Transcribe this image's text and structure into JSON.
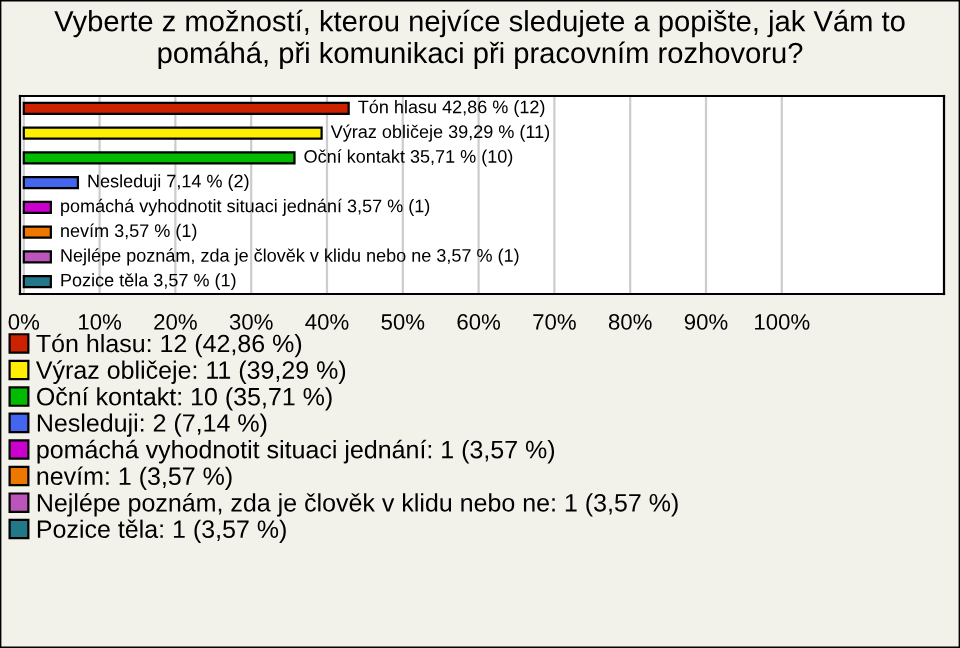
{
  "chart_data": {
    "type": "bar",
    "orientation": "horizontal",
    "title": "Vyberte z možností, kterou nejvíce sledujete a popište, jak Vám to pomáhá, při komunikaci při pracovním rozhovoru?",
    "categories": [
      null,
      null,
      null,
      null,
      null,
      null,
      null,
      null
    ],
    "series": [
      {
        "name": "Tón hlasu: 12 (42,86 %)",
        "color": "#cc2200",
        "values": [
          42.86,
          null,
          null,
          null,
          null,
          null,
          null,
          null
        ],
        "value_labels": [
          "Tón hlasu 42,86 % (12)",
          null,
          null,
          null,
          null,
          null,
          null,
          null
        ]
      },
      {
        "name": "Výraz obličeje: 11 (39,29 %)",
        "color": "#ffee00",
        "values": [
          null,
          39.29,
          null,
          null,
          null,
          null,
          null,
          null
        ],
        "value_labels": [
          null,
          "Výraz obličeje 39,29 % (11)",
          null,
          null,
          null,
          null,
          null,
          null
        ]
      },
      {
        "name": "Oční kontakt: 10 (35,71 %)",
        "color": "#00bb00",
        "values": [
          null,
          null,
          35.71,
          null,
          null,
          null,
          null,
          null
        ],
        "value_labels": [
          null,
          null,
          "Oční kontakt 35,71 % (10)",
          null,
          null,
          null,
          null,
          null
        ]
      },
      {
        "name": "Nesleduji: 2 (7,14 %)",
        "color": "#4466ee",
        "values": [
          null,
          null,
          null,
          7.14,
          null,
          null,
          null,
          null
        ],
        "value_labels": [
          null,
          null,
          null,
          "Nesleduji 7,14 % (2)",
          null,
          null,
          null,
          null
        ]
      },
      {
        "name": "pomáchá vyhodnotit situaci jednání: 1 (3,57 %)",
        "color": "#cc00cc",
        "values": [
          null,
          null,
          null,
          null,
          3.57,
          null,
          null,
          null
        ],
        "value_labels": [
          null,
          null,
          null,
          null,
          "pomáchá vyhodnotit situaci jednání 3,57 % (1)",
          null,
          null,
          null
        ]
      },
      {
        "name": "nevím: 1 (3,57 %)",
        "color": "#ee7700",
        "values": [
          null,
          null,
          null,
          null,
          null,
          3.57,
          null,
          null
        ],
        "value_labels": [
          null,
          null,
          null,
          null,
          null,
          "nevím 3,57 % (1)",
          null,
          null
        ]
      },
      {
        "name": "Nejlépe poznám, zda je člověk v klidu nebo ne: 1 (3,57 %)",
        "color": "#bb55bb",
        "values": [
          null,
          null,
          null,
          null,
          null,
          null,
          3.57,
          null
        ],
        "value_labels": [
          null,
          null,
          null,
          null,
          null,
          null,
          "Nejlépe poznám, zda je člověk v klidu nebo ne 3,57 % (1)",
          null
        ]
      },
      {
        "name": "Pozice těla: 1 (3,57 %)",
        "color": "#227788",
        "values": [
          null,
          null,
          null,
          null,
          null,
          null,
          null,
          3.57
        ],
        "value_labels": [
          null,
          null,
          null,
          null,
          null,
          null,
          null,
          "Pozice těla 3,57 % (1)"
        ]
      }
    ],
    "xlim": [
      -0.5,
      121.4
    ],
    "xticks": [
      {
        "value": 0,
        "label": "0%"
      },
      {
        "value": 10,
        "label": "10%"
      },
      {
        "value": 20,
        "label": "20%"
      },
      {
        "value": 30,
        "label": "30%"
      },
      {
        "value": 40,
        "label": "40%"
      },
      {
        "value": 50,
        "label": "50%"
      },
      {
        "value": 60,
        "label": "60%"
      },
      {
        "value": 70,
        "label": "70%"
      },
      {
        "value": 80,
        "label": "80%"
      },
      {
        "value": 90,
        "label": "90%"
      },
      {
        "value": 100,
        "label": "100%"
      }
    ],
    "grid": "x",
    "legend": "bottom"
  }
}
